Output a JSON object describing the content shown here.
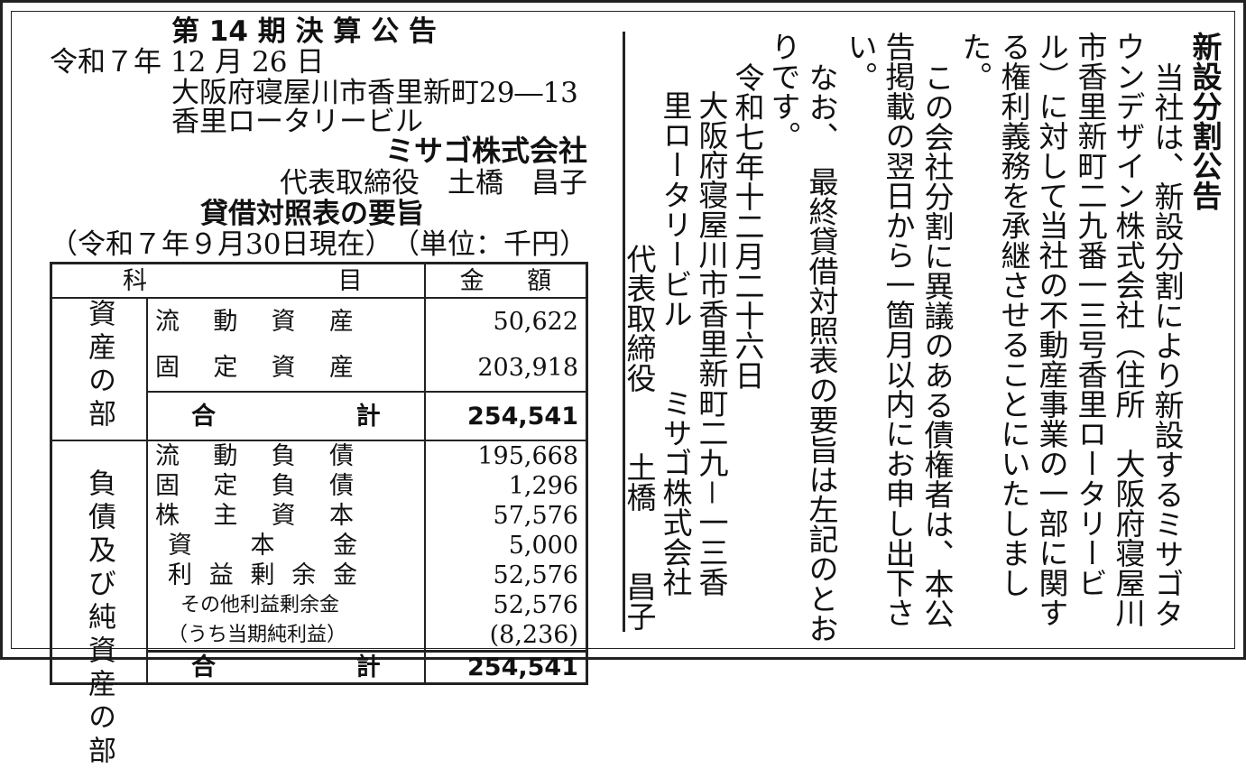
{
  "left": {
    "title": "第 14 期 決 算 公 告",
    "date": "令和７年 12 月 26 日",
    "address1": "大阪府寝屋川市香里新町29―13",
    "address2": "香里ロータリービル",
    "company": "ミサゴ株式会社",
    "representative": "代表取締役　土橋　昌子",
    "bs_title": "貸借対照表の要旨",
    "as_of": "（令和７年９月30日現在）",
    "unit": "（単位：千円）",
    "table": {
      "header": {
        "item": [
          "科",
          "目"
        ],
        "amount": [
          "金",
          "額"
        ]
      },
      "assets_label": "資産の部",
      "assets_rows": [
        {
          "item": [
            "流",
            "動",
            "資",
            "産"
          ],
          "amount": "50,622"
        },
        {
          "item": [
            "固",
            "定",
            "資",
            "産"
          ],
          "amount": "203,918"
        }
      ],
      "assets_total": {
        "item": [
          "合",
          "計"
        ],
        "amount": "254,541"
      },
      "liab_label": "負債及び純資産の部",
      "liab_rows": [
        {
          "item": [
            "流",
            "動",
            "負",
            "債"
          ],
          "amount": "195,668"
        },
        {
          "item": [
            "固",
            "定",
            "負",
            "債"
          ],
          "amount": "1,296"
        },
        {
          "item": [
            "株",
            "主",
            "資",
            "本"
          ],
          "amount": "57,576"
        },
        {
          "item": [
            "資",
            "本",
            "金"
          ],
          "amount": "5,000"
        },
        {
          "item": [
            "利",
            "益",
            "剰",
            "余",
            "金"
          ],
          "amount": "52,576"
        },
        {
          "item": [
            "その他利益剰余金"
          ],
          "amount": "52,576"
        },
        {
          "item": [
            "（うち当期純利益）"
          ],
          "amount": "(8,236)"
        }
      ],
      "liab_total": {
        "item": [
          "合",
          "計"
        ],
        "amount": "254,541"
      }
    }
  },
  "right": {
    "title": "新設分割公告",
    "lines": [
      "当社は、新設分割により新設するミサゴタ",
      "ウンデザイン株式会社（住所　大阪府寝屋川",
      "市香里新町二九番一三号香里ロータリービ",
      "ル）に対して当社の不動産事業の一部に関す",
      "る権利義務を承継させることにいたしまし",
      "た。",
      "この会社分割に異議のある債権者は、本公",
      "告掲載の翌日から一箇月以内にお申し出下さ",
      "い。",
      "なお、　最終貸借対照表の要旨は左記のとお",
      "りです。",
      "令和七年十二月二十六日",
      "大阪府寝屋川市香里新町二九－一三香",
      "里ロータリービル　　ミサゴ株式会社",
      "代表取締役　　土橋　　昌子"
    ]
  }
}
